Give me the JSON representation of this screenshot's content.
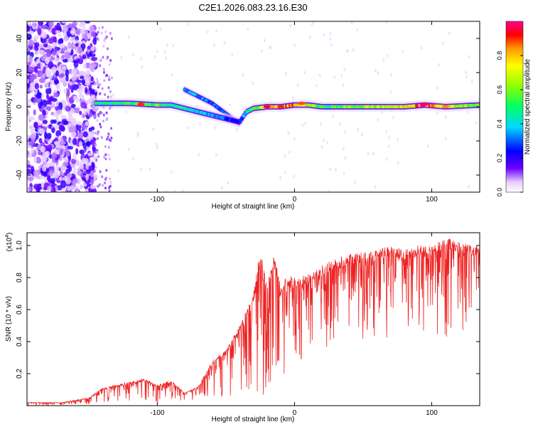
{
  "title": "C2E1.2026.083.23.16.E30",
  "chart_data": [
    {
      "type": "heatmap",
      "xlabel": "Height of straight line (km)",
      "ylabel": "Frequency (Hz)",
      "xlim": [
        -195,
        135
      ],
      "ylim": [
        -50,
        50
      ],
      "xticks": [
        -100,
        0,
        100
      ],
      "yticks": [
        -40,
        -20,
        0,
        20,
        40
      ],
      "colorbar": {
        "label": "Normalized spectral amplitude",
        "range": [
          0,
          1
        ],
        "ticks": [
          "0.0",
          "0.2",
          "0.4",
          "0.6",
          "0.8"
        ]
      },
      "noise_region_x": [
        -195,
        -145
      ],
      "ridge": {
        "x": [
          -145,
          -120,
          -100,
          -90,
          -80,
          -70,
          -60,
          -50,
          -40,
          -35,
          -30,
          -20,
          -10,
          0,
          10,
          20,
          40,
          60,
          80,
          95,
          110,
          135
        ],
        "freq": [
          2,
          2,
          1,
          1,
          -1,
          -3,
          -5,
          -7,
          -9,
          -3,
          -1,
          0,
          0,
          1,
          1,
          0,
          0,
          0,
          0,
          1,
          0,
          1
        ],
        "amplitude": [
          0.45,
          0.5,
          0.6,
          0.5,
          0.45,
          0.4,
          0.35,
          0.3,
          0.25,
          0.4,
          0.5,
          0.75,
          0.85,
          0.8,
          0.7,
          0.5,
          0.6,
          0.65,
          0.7,
          0.95,
          0.7,
          0.6
        ]
      },
      "branch": {
        "x": [
          -80,
          -70,
          -60,
          -50,
          -40
        ],
        "freq": [
          10,
          6,
          2,
          -4,
          -10
        ],
        "amplitude": [
          0.35,
          0.35,
          0.3,
          0.3,
          0.25
        ]
      }
    },
    {
      "type": "line",
      "xlabel": "Height of straight line (km)",
      "ylabel": "SNR (10 * v/v)",
      "y_multiplier": "(x10^4)",
      "y_multiplier_base": "(x10",
      "y_multiplier_exp": "4",
      "xlim": [
        -195,
        135
      ],
      "ylim": [
        0,
        1.08
      ],
      "xticks": [
        -100,
        0,
        100
      ],
      "yticks": [
        0.2,
        0.4,
        0.6,
        0.8,
        1.0
      ],
      "series": [
        {
          "name": "SNR",
          "color": "#ee2222",
          "x": [
            -195,
            -170,
            -150,
            -140,
            -130,
            -120,
            -110,
            -100,
            -90,
            -80,
            -70,
            -60,
            -50,
            -40,
            -30,
            -25,
            -20,
            -15,
            -10,
            -5,
            0,
            10,
            20,
            30,
            40,
            50,
            60,
            70,
            80,
            90,
            100,
            110,
            120,
            130,
            135
          ],
          "upper": [
            0.02,
            0.02,
            0.05,
            0.11,
            0.13,
            0.15,
            0.17,
            0.13,
            0.16,
            0.08,
            0.12,
            0.28,
            0.35,
            0.5,
            0.7,
            0.98,
            0.75,
            0.95,
            0.75,
            0.82,
            0.8,
            0.82,
            0.88,
            0.92,
            0.95,
            0.96,
            0.97,
            1.0,
            0.98,
            1.0,
            1.0,
            1.05,
            1.02,
            1.0,
            1.0
          ],
          "lower": [
            0.0,
            0.0,
            0.01,
            0.02,
            0.03,
            0.03,
            0.03,
            0.02,
            0.03,
            0.02,
            0.03,
            0.05,
            0.05,
            0.08,
            0.05,
            0.1,
            0.0,
            0.1,
            0.1,
            0.15,
            0.25,
            0.25,
            0.3,
            0.35,
            0.4,
            0.4,
            0.42,
            0.4,
            0.4,
            0.42,
            0.45,
            0.42,
            0.45,
            0.45,
            0.5
          ]
        }
      ]
    }
  ]
}
